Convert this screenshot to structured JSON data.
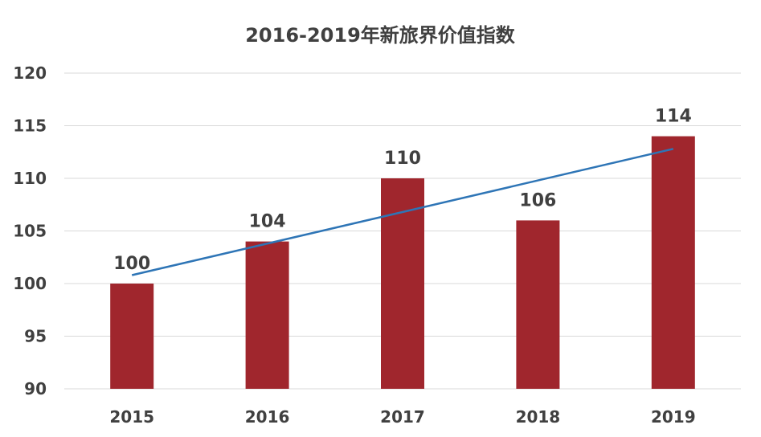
{
  "chart_data": {
    "type": "bar",
    "title": "2016-2019年新旅界价值指数",
    "xlabel": "",
    "ylabel": "",
    "categories": [
      "2015",
      "2016",
      "2017",
      "2018",
      "2019"
    ],
    "values": [
      100,
      104,
      110,
      106,
      114
    ],
    "ylim": [
      90,
      120
    ],
    "yticks": [
      90,
      95,
      100,
      105,
      110,
      115,
      120
    ],
    "grid": true,
    "legend": "none",
    "data_labels": [
      "100",
      "104",
      "110",
      "106",
      "114"
    ],
    "trendline": {
      "type": "linear",
      "color": "#2e75b6"
    },
    "colors": {
      "bar": "#a0262d",
      "gridline": "#d9d9d9",
      "text": "#404040"
    }
  }
}
